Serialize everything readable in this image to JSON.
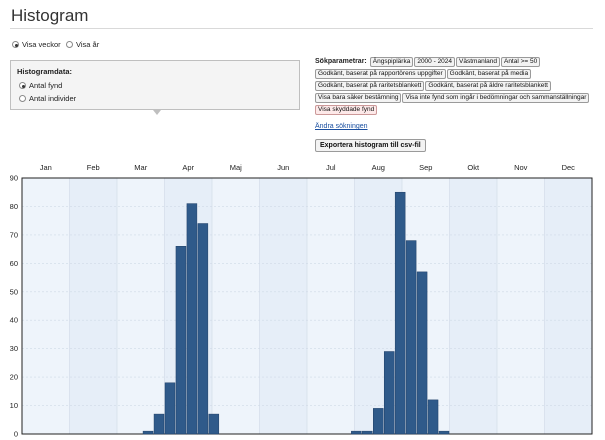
{
  "page": {
    "title": "Histogram"
  },
  "view_toggle": [
    {
      "label": "Visa veckor",
      "selected": true
    },
    {
      "label": "Visa år",
      "selected": false
    }
  ],
  "histogram_data": {
    "label": "Histogramdata:",
    "options": [
      {
        "label": "Antal fynd",
        "selected": true
      },
      {
        "label": "Antal individer",
        "selected": false
      }
    ]
  },
  "search_params": {
    "label": "Sökparametrar:",
    "chips": [
      {
        "text": "Ängspiplärka",
        "warn": false
      },
      {
        "text": "2000 - 2024",
        "warn": false
      },
      {
        "text": "Västmanland",
        "warn": false
      },
      {
        "text": "Antal >= 50",
        "warn": false
      },
      {
        "text": "Godkänt, baserat på rapportörens uppgifter",
        "warn": false
      },
      {
        "text": "Godkänt, baserat på media",
        "warn": false
      },
      {
        "text": "Godkänt, baserat på raritetsblankett",
        "warn": false
      },
      {
        "text": "Godkänt, baserat på äldre raritetsblankett",
        "warn": false
      },
      {
        "text": "Visa bara säker bestämning",
        "warn": false
      },
      {
        "text": "Visa inte fynd som ingår i bedömningar och sammanställningar",
        "warn": false
      },
      {
        "text": "Visa skyddade fynd",
        "warn": true
      }
    ]
  },
  "change_search_link": "Ändra sökningen",
  "export_button": "Exportera histogram till csv-fil",
  "colors": {
    "bar": "#2f5a8a",
    "bar_stroke": "#1f3f66",
    "plot_bg": "#eef4fb",
    "grid": "#cfd9e6"
  },
  "chart_data": {
    "type": "bar",
    "months": [
      "Jan",
      "Feb",
      "Mar",
      "Apr",
      "Maj",
      "Jun",
      "Jul",
      "Aug",
      "Sep",
      "Okt",
      "Nov",
      "Dec"
    ],
    "x_unit": "week",
    "weeks": [
      1,
      2,
      3,
      4,
      5,
      6,
      7,
      8,
      9,
      10,
      11,
      12,
      13,
      14,
      15,
      16,
      17,
      18,
      19,
      20,
      21,
      22,
      23,
      24,
      25,
      26,
      27,
      28,
      29,
      30,
      31,
      32,
      33,
      34,
      35,
      36,
      37,
      38,
      39,
      40,
      41,
      42,
      43,
      44,
      45,
      46,
      47,
      48,
      49,
      50,
      51,
      52
    ],
    "values": [
      0,
      0,
      0,
      0,
      0,
      0,
      0,
      0,
      0,
      0,
      0,
      1,
      7,
      18,
      66,
      81,
      74,
      7,
      0,
      0,
      0,
      0,
      0,
      0,
      0,
      0,
      0,
      0,
      0,
      0,
      1,
      1,
      9,
      29,
      85,
      68,
      57,
      12,
      1,
      0,
      0,
      0,
      0,
      0,
      0,
      0,
      0,
      0,
      0,
      0,
      0,
      0
    ],
    "ylim": [
      0,
      90
    ],
    "yticks": [
      0,
      10,
      20,
      30,
      40,
      50,
      60,
      70,
      80,
      90
    ],
    "grid": true
  }
}
